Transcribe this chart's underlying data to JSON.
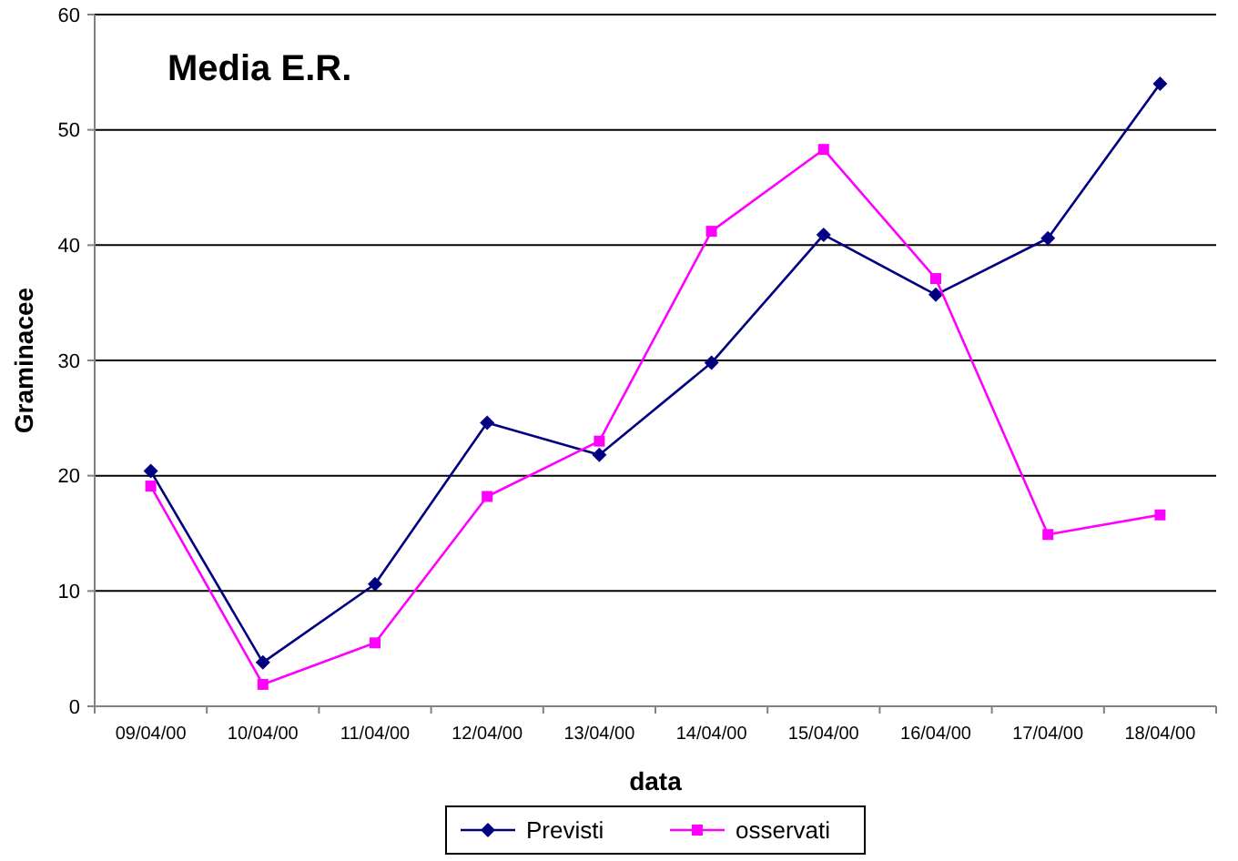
{
  "chart_data": {
    "type": "line",
    "title": "Media E.R.",
    "xlabel": "data",
    "ylabel": "Graminacee",
    "categories": [
      "09/04/00",
      "10/04/00",
      "11/04/00",
      "12/04/00",
      "13/04/00",
      "14/04/00",
      "15/04/00",
      "16/04/00",
      "17/04/00",
      "18/04/00"
    ],
    "series": [
      {
        "name": "Previsti",
        "color": "#000080",
        "marker": "diamond",
        "values": [
          20.4,
          3.8,
          10.6,
          24.6,
          21.8,
          29.8,
          40.9,
          35.7,
          40.6,
          54.0
        ]
      },
      {
        "name": "osservati",
        "color": "#ff00ff",
        "marker": "square",
        "values": [
          19.1,
          1.9,
          5.5,
          18.2,
          23.0,
          41.2,
          48.3,
          37.1,
          14.9,
          16.6
        ]
      }
    ],
    "ylim": [
      0,
      60
    ],
    "yticks": [
      0,
      10,
      20,
      30,
      40,
      50,
      60
    ],
    "grid": "y",
    "legend": "bottom",
    "line_style": "solid"
  }
}
